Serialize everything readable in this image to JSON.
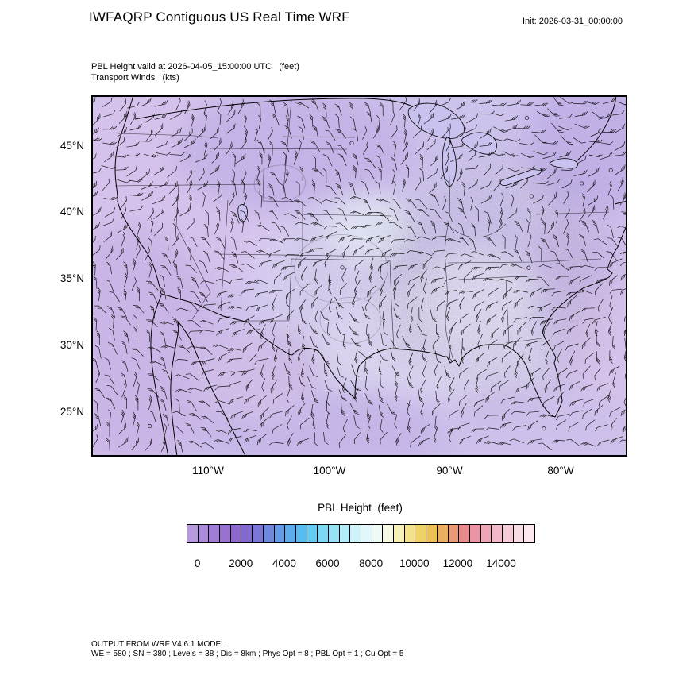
{
  "header": {
    "title": "IWFAQRP Contiguous US Real Time WRF",
    "init_label": "Init: 2026-03-31_00:00:00"
  },
  "subtitle": {
    "line1": "PBL Height valid at 2026-04-05_15:00:00 UTC   (feet)",
    "line2": "Transport Winds   (kts)"
  },
  "map": {
    "y_ticks": [
      "45°N",
      "40°N",
      "35°N",
      "30°N",
      "25°N"
    ],
    "x_ticks": [
      "110°W",
      "100°W",
      "90°W",
      "80°W"
    ]
  },
  "colorbar": {
    "title": "PBL Height  (feet)",
    "tick_labels": [
      "0",
      "2000",
      "4000",
      "6000",
      "8000",
      "10000",
      "12000",
      "14000"
    ],
    "colors": [
      "#b79ade",
      "#ac8bd9",
      "#a17cd4",
      "#9770d0",
      "#8d68cd",
      "#8269cf",
      "#7a76d6",
      "#6f88de",
      "#649ae6",
      "#5cacec",
      "#57bdf1",
      "#63ccf3",
      "#7cd8f5",
      "#98e2f7",
      "#b4ebf9",
      "#cdf2fa",
      "#e0f7fb",
      "#eefaf6",
      "#f7fae3",
      "#f7f0b8",
      "#f3e18e",
      "#efd167",
      "#ecc156",
      "#e9ae5e",
      "#e89a78",
      "#e88b8d",
      "#ea94a5",
      "#eda6b8",
      "#f1b9c9",
      "#f5cbd7",
      "#f8dce3",
      "#fbe9ef"
    ]
  },
  "footer": {
    "line1": "OUTPUT FROM WRF V4.6.1 MODEL",
    "line2": "WE = 580 ; SN = 380 ; Levels = 38 ; Dis = 8km ; Phys Opt = 8 ; PBL Opt = 1 ; Cu Opt = 5"
  },
  "chart_data": {
    "type": "heatmap",
    "title": "IWFAQRP Contiguous US Real Time WRF",
    "init_time": "2026-03-31_00:00:00",
    "valid_time": "2026-04-05_15:00:00 UTC",
    "region": "Contiguous United States",
    "fields": [
      {
        "name": "PBL Height",
        "units": "feet",
        "style": "filled color shading"
      },
      {
        "name": "Transport Winds",
        "units": "kts",
        "style": "wind barbs"
      }
    ],
    "x_axis": {
      "label": "longitude",
      "tick_labels": [
        "110°W",
        "100°W",
        "90°W",
        "80°W"
      ]
    },
    "y_axis": {
      "label": "latitude",
      "tick_labels": [
        "45°N",
        "40°N",
        "35°N",
        "30°N",
        "25°N"
      ]
    },
    "colorbar": {
      "title": "PBL Height  (feet)",
      "tick_values": [
        0,
        2000,
        4000,
        6000,
        8000,
        10000,
        12000,
        14000
      ],
      "num_boxes": 32,
      "palette_low_to_high": "purple → blue → cyan → white → yellow → orange → pink"
    },
    "observed_pattern": "PBL heights predominantly in the low (purple, roughly 0–2000 ft) range across the whole domain, with wind barbs plotted on a uniform grid"
  }
}
